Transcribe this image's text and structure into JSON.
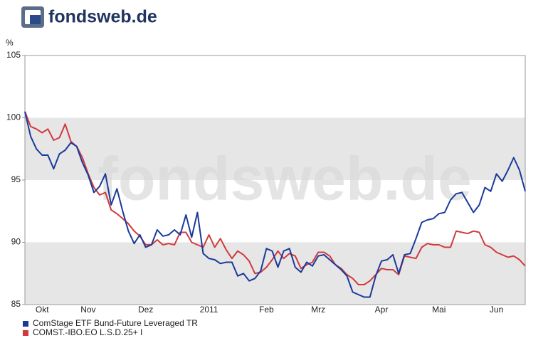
{
  "logo": "fondsweb.de",
  "watermark": "fondsweb.de",
  "chart_data": {
    "type": "line",
    "y_label": "%",
    "categories": [
      null,
      null,
      null,
      "Okt",
      null,
      null,
      null,
      null,
      null,
      null,
      null,
      "Nov",
      null,
      null,
      null,
      null,
      null,
      null,
      null,
      null,
      null,
      "Dez",
      null,
      null,
      null,
      null,
      null,
      null,
      null,
      null,
      null,
      null,
      "2011",
      null,
      null,
      null,
      null,
      null,
      null,
      null,
      null,
      null,
      "Feb",
      null,
      null,
      null,
      null,
      null,
      null,
      null,
      null,
      "Mrz",
      null,
      null,
      null,
      null,
      null,
      null,
      null,
      null,
      null,
      null,
      "Apr",
      null,
      null,
      null,
      null,
      null,
      null,
      null,
      null,
      null,
      "Mai",
      null,
      null,
      null,
      null,
      null,
      null,
      null,
      null,
      null,
      "Jun",
      null,
      null,
      null,
      null,
      null
    ],
    "series": [
      {
        "name": "ComStage ETF Bund-Future Leveraged TR",
        "color": "#1a3a9a",
        "values": [
          100.5,
          98.5,
          97.5,
          97.0,
          97.0,
          95.9,
          97.1,
          97.4,
          98.0,
          97.7,
          96.4,
          95.4,
          94.0,
          94.5,
          95.5,
          93.0,
          94.3,
          92.5,
          90.9,
          89.9,
          90.6,
          89.6,
          89.8,
          91.0,
          90.5,
          90.6,
          91.0,
          90.6,
          92.2,
          90.4,
          92.4,
          89.1,
          88.7,
          88.6,
          88.3,
          88.4,
          88.4,
          87.3,
          87.5,
          86.9,
          87.1,
          87.7,
          89.5,
          89.3,
          88.0,
          89.3,
          89.5,
          88.0,
          87.6,
          88.4,
          88.1,
          88.9,
          89.0,
          88.6,
          88.2,
          87.8,
          87.3,
          86.0,
          85.8,
          85.6,
          85.6,
          87.3,
          88.5,
          88.6,
          89.0,
          87.5,
          89.0,
          89.1,
          90.3,
          91.6,
          91.8,
          91.9,
          92.3,
          92.4,
          93.4,
          93.9,
          94.0,
          93.2,
          92.4,
          93.0,
          94.4,
          94.1,
          95.5,
          94.9,
          95.8,
          96.8,
          95.8,
          94.1
        ]
      },
      {
        "name": "COMST.-IBO.EO L.S.D.25+ I",
        "color": "#d03a3c",
        "values": [
          100.5,
          99.3,
          99.1,
          98.8,
          99.1,
          98.2,
          98.4,
          99.5,
          98.1,
          97.7,
          96.8,
          95.5,
          94.4,
          93.8,
          94.0,
          92.6,
          92.3,
          91.9,
          91.5,
          90.9,
          90.5,
          89.8,
          89.8,
          90.2,
          89.8,
          89.9,
          89.8,
          90.8,
          90.8,
          90.0,
          89.8,
          89.6,
          90.6,
          89.6,
          90.3,
          89.4,
          88.7,
          89.3,
          89.0,
          88.5,
          87.5,
          87.6,
          88.0,
          88.6,
          89.3,
          88.7,
          89.1,
          88.9,
          87.9,
          88.2,
          88.4,
          89.2,
          89.2,
          88.9,
          88.2,
          87.9,
          87.4,
          87.1,
          86.6,
          86.6,
          86.9,
          87.4,
          87.9,
          87.8,
          87.8,
          87.4,
          88.9,
          88.8,
          88.7,
          89.6,
          89.9,
          89.8,
          89.8,
          89.6,
          89.6,
          90.9,
          90.8,
          90.7,
          90.9,
          90.8,
          89.8,
          89.6,
          89.2,
          89.0,
          88.8,
          88.9,
          88.6,
          88.1
        ]
      }
    ],
    "ylim": [
      85,
      105
    ],
    "yticks": [
      85,
      90,
      95,
      100,
      105
    ],
    "banded": true,
    "legend": "bottom-left"
  }
}
